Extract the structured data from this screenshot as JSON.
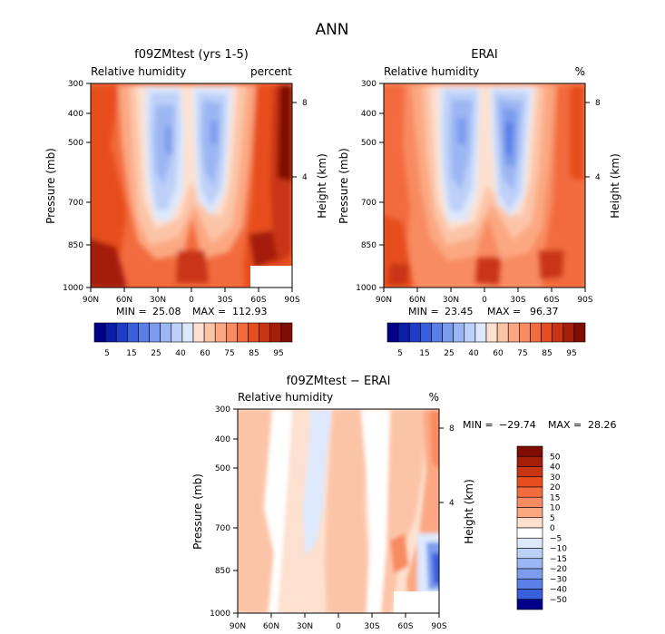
{
  "figure_title": "ANN",
  "colors": {
    "negative_ramp": [
      "#00008b",
      "#0a1ea8",
      "#1f3cc6",
      "#3a5fdc",
      "#5a80e8",
      "#7c9cee",
      "#9cb6f3",
      "#bcd0f8",
      "#dde8fc"
    ],
    "neutral": "#ffffff",
    "positive_ramp": [
      "#fde0cf",
      "#fcc4a7",
      "#fba882",
      "#f88b61",
      "#f26b3e",
      "#e74d1f",
      "#c93412",
      "#a51e0a",
      "#7f0d04"
    ]
  },
  "chart_data": [
    {
      "type": "heatmap",
      "panel": "f09ZMtest (yrs 1-5)",
      "title": "f09ZMtest (yrs 1-5)",
      "left_label": "Relative humidity",
      "right_label": "percent",
      "ylabel": "Pressure (mb)",
      "ylabel_right": "Height (km)",
      "x_ticks": [
        "90N",
        "60N",
        "30N",
        "0",
        "30S",
        "60S",
        "90S"
      ],
      "y_ticks": [
        "300",
        "400",
        "500",
        "700",
        "850",
        "1000"
      ],
      "y_right_ticks": [
        "8",
        "4"
      ],
      "ylim": [
        1000,
        300
      ],
      "min": "25.08",
      "max": "112.93",
      "min_label": "MIN =",
      "max_label": "MAX =",
      "colorbar": [
        "5",
        "15",
        "25",
        "40",
        "60",
        "75",
        "85",
        "95"
      ],
      "colorbar_orientation": "horizontal",
      "shading_levels": [
        5,
        10,
        15,
        20,
        25,
        30,
        35,
        40,
        50,
        60,
        65,
        70,
        75,
        80,
        85,
        90,
        95
      ]
    },
    {
      "type": "heatmap",
      "panel": "ERAI",
      "title": "ERAI",
      "left_label": "Relative humidity",
      "right_label": "%",
      "ylabel": "Pressure (mb)",
      "ylabel_right": "Height (km)",
      "x_ticks": [
        "90N",
        "60N",
        "30N",
        "0",
        "30S",
        "60S",
        "90S"
      ],
      "y_ticks": [
        "300",
        "400",
        "500",
        "700",
        "850",
        "1000"
      ],
      "y_right_ticks": [
        "8",
        "4"
      ],
      "ylim": [
        1000,
        300
      ],
      "min": "23.45",
      "max": "96.37",
      "min_label": "MIN =",
      "max_label": "MAX =",
      "colorbar": [
        "5",
        "15",
        "25",
        "40",
        "60",
        "75",
        "85",
        "95"
      ],
      "colorbar_orientation": "horizontal",
      "shading_levels": [
        5,
        10,
        15,
        20,
        25,
        30,
        35,
        40,
        50,
        60,
        65,
        70,
        75,
        80,
        85,
        90,
        95
      ]
    },
    {
      "type": "heatmap",
      "panel": "f09ZMtest - ERAI",
      "title": "f09ZMtest − ERAI",
      "left_label": "Relative humidity",
      "right_label": "%",
      "ylabel": "Pressure (mb)",
      "ylabel_right": "Height (km)",
      "x_ticks": [
        "90N",
        "60N",
        "30N",
        "0",
        "30S",
        "60S",
        "90S"
      ],
      "y_ticks": [
        "300",
        "400",
        "500",
        "700",
        "850",
        "1000"
      ],
      "y_right_ticks": [
        "8",
        "4"
      ],
      "ylim": [
        1000,
        300
      ],
      "min": "−29.74",
      "max": "28.26",
      "min_label": "MIN =",
      "max_label": "MAX =",
      "colorbar": [
        "50",
        "40",
        "30",
        "20",
        "15",
        "10",
        "5",
        "0",
        "−5",
        "−10",
        "−15",
        "−20",
        "−30",
        "−40",
        "−50"
      ],
      "colorbar_orientation": "vertical"
    }
  ]
}
